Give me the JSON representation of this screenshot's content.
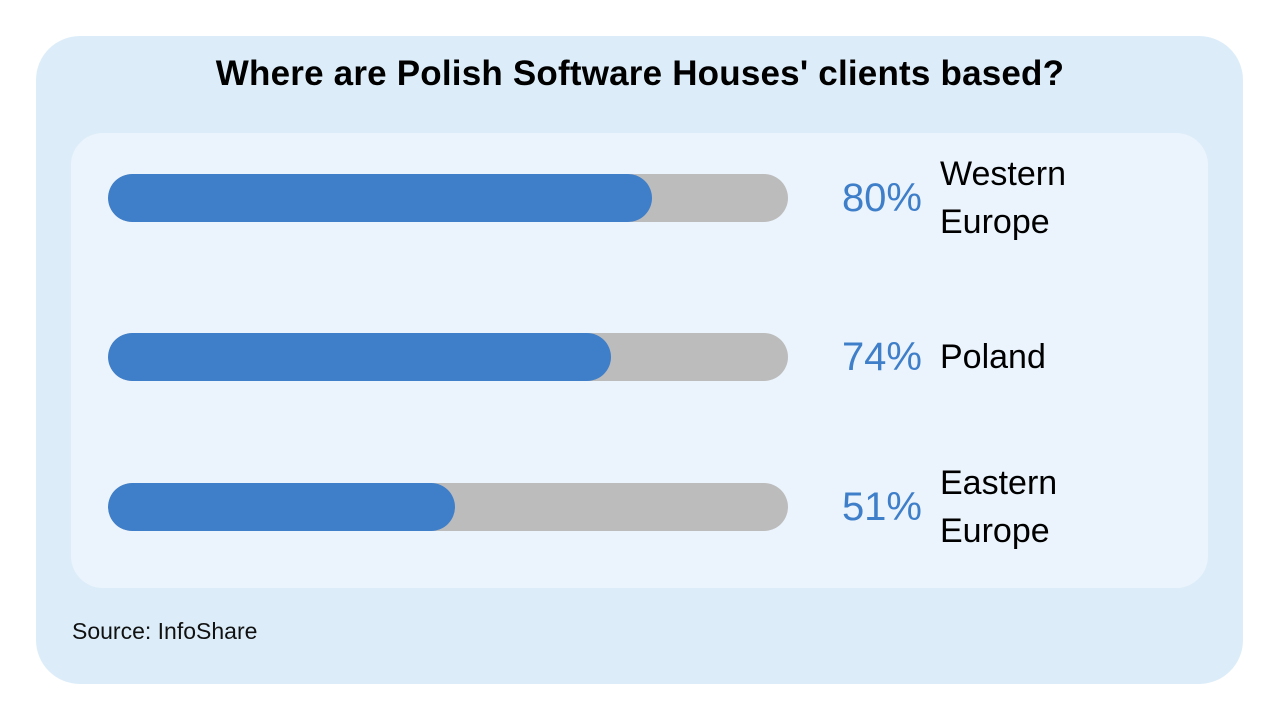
{
  "chart_data": {
    "type": "bar",
    "orientation": "horizontal",
    "title": "Where are Polish Software Houses' clients based?",
    "categories": [
      "Western Europe",
      "Poland",
      "Eastern Europe"
    ],
    "label_lines": [
      [
        "Western",
        "Europe"
      ],
      [
        "Poland"
      ],
      [
        "Eastern",
        "Europe"
      ]
    ],
    "values": [
      80,
      74,
      51
    ],
    "value_labels": [
      "80%",
      "74%",
      "51%"
    ],
    "xlim": [
      0,
      100
    ],
    "grid": false,
    "legend": "none"
  },
  "source": "Source: InfoShare",
  "colors": {
    "fill": "#3f7fca",
    "track": "#bcbcbc",
    "percent_text": "#3f7fca",
    "outer_background": "#dcedf9",
    "inner_background": "#ebf4fc"
  }
}
